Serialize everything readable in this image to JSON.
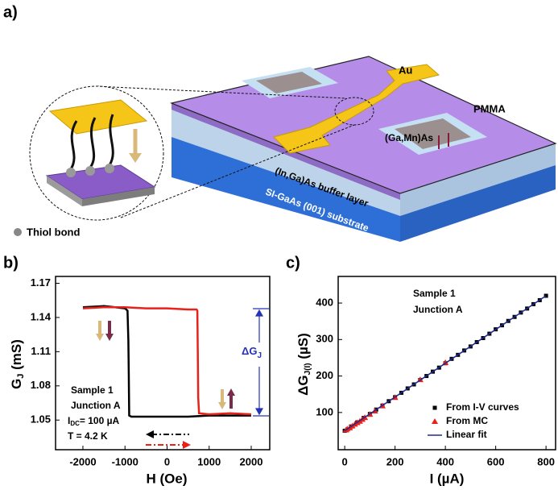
{
  "panels": [
    "a)",
    "b)",
    "c)"
  ],
  "diagram": {
    "labels": {
      "au": "Au",
      "pmma": "PMMA",
      "gamnas": "(Ga,Mn)As",
      "buffer": "(In,Ga)As buffer layer",
      "substrate": "SI-GaAs (001) substrate",
      "thiol": "Thiol bond"
    }
  },
  "chart_data": [
    {
      "type": "line",
      "x_label": "H (Oe)",
      "y_label": {
        "main": "G",
        "sub": "J",
        "unit": " (mS)"
      },
      "xlim": [
        -2650,
        2440
      ],
      "xticks": [
        -2000,
        -1000,
        0,
        1000,
        2000
      ],
      "ylim": [
        1.024,
        1.176
      ],
      "yticks": [
        1.05,
        1.08,
        1.11,
        1.14,
        1.17
      ],
      "annotations": {
        "sample": "Sample 1",
        "junction": "Junction A",
        "current": {
          "main": "I",
          "sub": "DC",
          "rest": "= 100 µA"
        },
        "temperature": "T = 4.2 K",
        "delta": {
          "main": "ΔG",
          "sub": "J"
        }
      },
      "series": [
        {
          "color": "#000000",
          "x": [
            2000,
            1500,
            1000,
            500,
            0,
            -500,
            -850,
            -900,
            -910,
            -920,
            -940,
            -1000,
            -1500,
            -2000
          ],
          "values": [
            1.054,
            1.054,
            1.054,
            1.053,
            1.053,
            1.053,
            1.053,
            1.054,
            1.09,
            1.12,
            1.146,
            1.148,
            1.15,
            1.149
          ]
        },
        {
          "color": "#e8221b",
          "x": [
            -2000,
            -1500,
            -1000,
            -500,
            0,
            500,
            700,
            720,
            730,
            740,
            760,
            1000,
            1500,
            2000
          ],
          "values": [
            1.148,
            1.149,
            1.149,
            1.148,
            1.148,
            1.147,
            1.147,
            1.146,
            1.11,
            1.07,
            1.056,
            1.055,
            1.056,
            1.055
          ]
        }
      ]
    },
    {
      "type": "scatter",
      "x_label": "I (µA)",
      "y_label": {
        "main": "ΔG",
        "sub": "J(I)",
        "unit": " (µS)"
      },
      "xlim": [
        -26,
        838
      ],
      "xticks": [
        0,
        200,
        400,
        600,
        800
      ],
      "ylim": [
        -2,
        473
      ],
      "yticks": [
        100,
        200,
        300,
        400
      ],
      "annotations": {
        "sample": "Sample 1",
        "junction": "Junction A"
      },
      "legend": "lower right",
      "series": [
        {
          "name": "From I-V curves",
          "color": "#000000",
          "marker": "square",
          "x": [
            0,
            25,
            50,
            75,
            100,
            125,
            150,
            175,
            200,
            225,
            250,
            275,
            300,
            325,
            350,
            375,
            400,
            425,
            450,
            475,
            500,
            525,
            550,
            575,
            600,
            625,
            650,
            675,
            700,
            725,
            750,
            775,
            800
          ],
          "values": [
            50,
            61.6,
            73,
            85,
            96,
            108,
            119,
            131,
            142,
            154,
            166,
            177,
            189,
            200,
            212,
            223,
            235,
            247,
            258,
            270,
            281,
            293,
            304,
            316,
            328,
            339,
            351,
            362,
            374,
            385,
            397,
            408,
            420
          ]
        },
        {
          "name": "From MC",
          "color": "#e8221b",
          "marker": "triangle",
          "x": [
            5,
            10,
            20,
            30,
            40,
            50,
            60,
            70,
            80,
            100,
            120,
            150,
            200,
            300,
            400
          ],
          "values": [
            52,
            55,
            58,
            63,
            68,
            72,
            76,
            81,
            86,
            95,
            104,
            118,
            141,
            190,
            237
          ]
        },
        {
          "name": "Linear fit",
          "color": "#1f2a8c",
          "marker": "line",
          "x": [
            0,
            800
          ],
          "values": [
            50,
            420
          ]
        }
      ]
    }
  ]
}
